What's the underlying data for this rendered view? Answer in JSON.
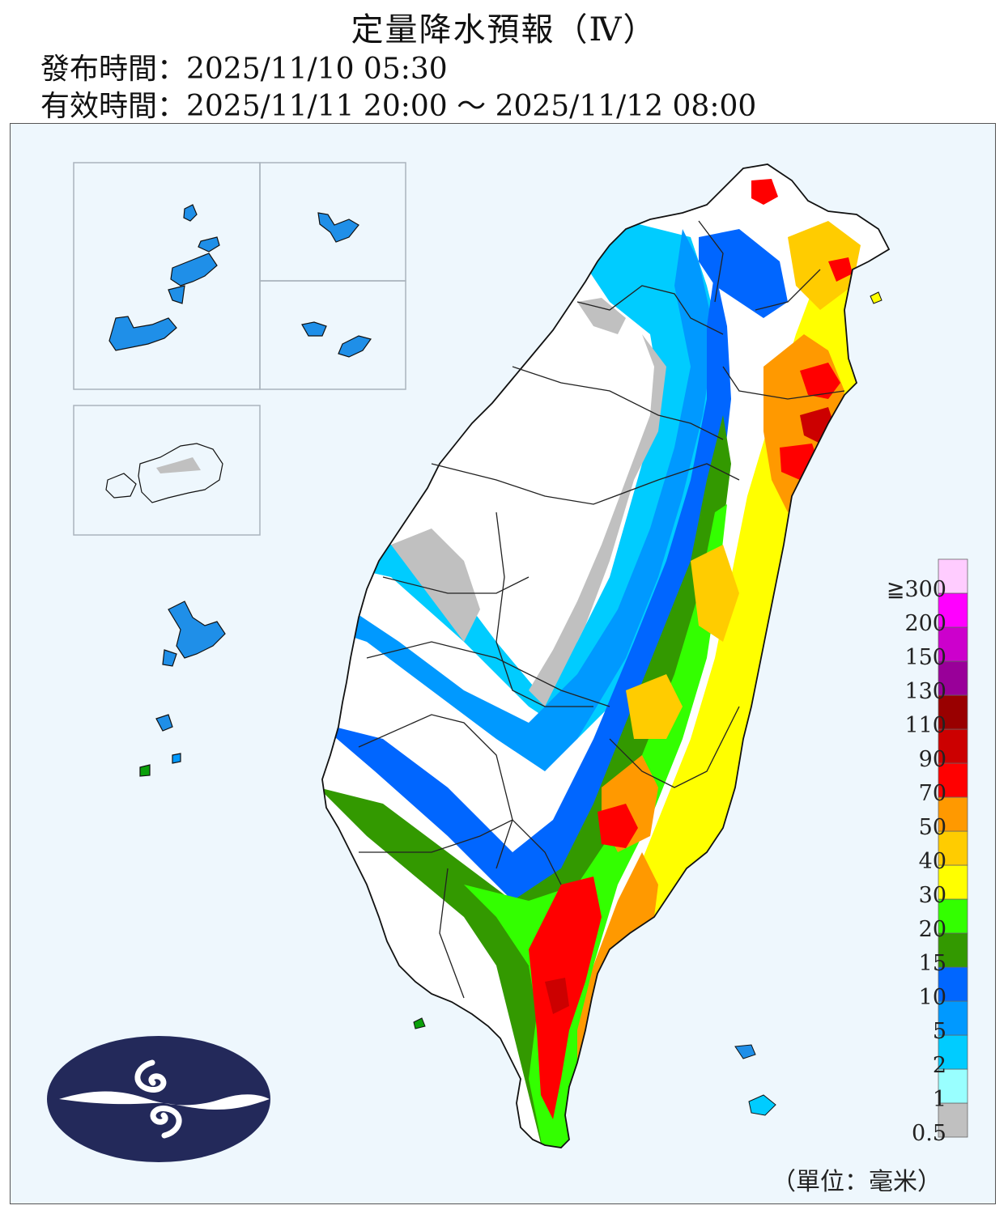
{
  "title": "定量降水預報（Ⅳ）",
  "issue_time": "發布時間：2025/11/10 05:30",
  "valid_time": "有效時間：2025/11/11 20:00 ～ 2025/11/12 08:00",
  "unit": "（單位：毫米）",
  "legend": {
    "labels": [
      "0.5",
      "1",
      "2",
      "5",
      "10",
      "15",
      "20",
      "30",
      "40",
      "50",
      "70",
      "90",
      "110",
      "130",
      "150",
      "200",
      "≧300"
    ],
    "colors": [
      "#c0c0c0",
      "#99ffff",
      "#00ccff",
      "#0099ff",
      "#0066ff",
      "#339900",
      "#33ff00",
      "#ffff00",
      "#ffcc00",
      "#ff9900",
      "#ff0000",
      "#cc0000",
      "#990000",
      "#990099",
      "#cc00cc",
      "#ff00ff",
      "#ffccff"
    ]
  },
  "logo": "central-weather-administration-logo"
}
